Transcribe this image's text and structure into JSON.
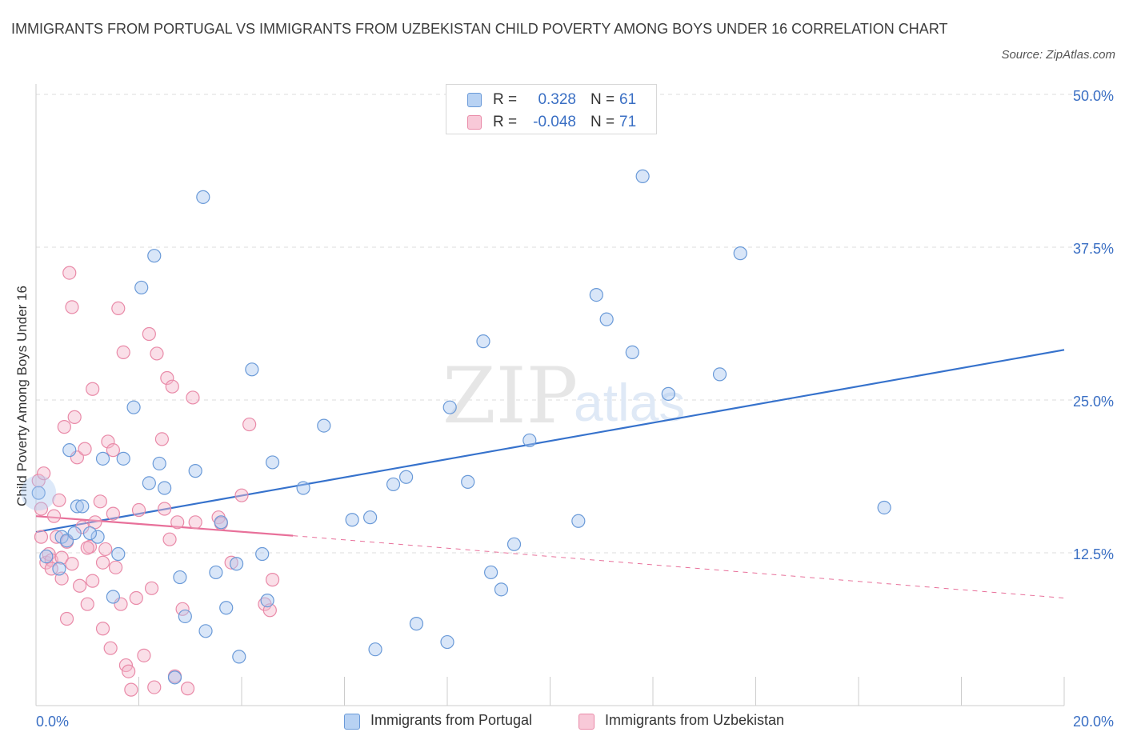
{
  "title": "IMMIGRANTS FROM PORTUGAL VS IMMIGRANTS FROM UZBEKISTAN CHILD POVERTY AMONG BOYS UNDER 16 CORRELATION CHART",
  "source": "Source: ZipAtlas.com",
  "watermark": {
    "zip": "ZIP",
    "atlas": "atlas"
  },
  "legend_top": {
    "rows": [
      {
        "r_label": "R =",
        "r_value": "0.328",
        "n_label": "N =",
        "n_value": "61"
      },
      {
        "r_label": "R =",
        "r_value": "-0.048",
        "n_label": "N =",
        "n_value": "71"
      }
    ]
  },
  "legend_bottom": {
    "items": [
      {
        "label": "Immigrants from Portugal"
      },
      {
        "label": "Immigrants from Uzbekistan"
      }
    ]
  },
  "colors": {
    "portugal_fill": "#aac8f0",
    "portugal_stroke": "#6a9ad8",
    "portugal_line": "#3672cc",
    "uzbekistan_fill": "#f5b8cc",
    "uzbekistan_stroke": "#e98aa8",
    "uzbekistan_line": "#e8709a",
    "axis_text": "#3a6fc4",
    "grid": "#dddddd"
  },
  "chart_data": {
    "type": "scatter",
    "title": "IMMIGRANTS FROM PORTUGAL VS IMMIGRANTS FROM UZBEKISTAN CHILD POVERTY AMONG BOYS UNDER 16 CORRELATION CHART",
    "xlabel": "",
    "ylabel": "Child Poverty Among Boys Under 16",
    "xlim": [
      0,
      20
    ],
    "ylim": [
      0,
      50
    ],
    "x_tick_labels": [
      "0.0%",
      "20.0%"
    ],
    "y_ticks": [
      12.5,
      25.0,
      37.5,
      50.0
    ],
    "y_tick_labels": [
      "12.5%",
      "25.0%",
      "37.5%",
      "50.0%"
    ],
    "grid": "horizontal dashed",
    "legend": "bottom-center",
    "series": [
      {
        "name": "Immigrants from Portugal",
        "r": 0.328,
        "n": 61,
        "trend": {
          "x": [
            0.0,
            20.0
          ],
          "y": [
            14.2,
            29.1
          ],
          "style": "solid"
        },
        "points": [
          [
            0.05,
            17.4
          ],
          [
            0.2,
            12.2
          ],
          [
            0.45,
            11.2
          ],
          [
            0.5,
            13.8
          ],
          [
            0.6,
            13.5
          ],
          [
            0.65,
            20.9
          ],
          [
            0.75,
            14.1
          ],
          [
            0.8,
            16.3
          ],
          [
            0.9,
            16.3
          ],
          [
            1.2,
            13.8
          ],
          [
            1.3,
            20.2
          ],
          [
            1.6,
            12.4
          ],
          [
            1.5,
            8.9
          ],
          [
            1.7,
            20.2
          ],
          [
            1.9,
            24.4
          ],
          [
            2.05,
            34.2
          ],
          [
            2.2,
            18.2
          ],
          [
            2.3,
            36.8
          ],
          [
            2.4,
            19.8
          ],
          [
            2.5,
            17.8
          ],
          [
            2.7,
            2.3
          ],
          [
            2.8,
            10.5
          ],
          [
            2.9,
            7.3
          ],
          [
            3.1,
            19.2
          ],
          [
            3.25,
            41.6
          ],
          [
            3.3,
            6.1
          ],
          [
            3.5,
            10.9
          ],
          [
            3.6,
            15.0
          ],
          [
            3.7,
            8.0
          ],
          [
            3.9,
            11.6
          ],
          [
            3.95,
            4.0
          ],
          [
            4.2,
            27.5
          ],
          [
            4.4,
            12.4
          ],
          [
            4.5,
            8.6
          ],
          [
            4.6,
            19.9
          ],
          [
            5.2,
            17.8
          ],
          [
            5.6,
            22.9
          ],
          [
            6.15,
            15.2
          ],
          [
            6.5,
            15.4
          ],
          [
            6.6,
            4.6
          ],
          [
            6.95,
            18.1
          ],
          [
            7.2,
            18.7
          ],
          [
            7.4,
            6.7
          ],
          [
            8.05,
            24.4
          ],
          [
            8.0,
            5.2
          ],
          [
            8.4,
            18.3
          ],
          [
            8.7,
            29.8
          ],
          [
            8.85,
            10.9
          ],
          [
            9.05,
            9.5
          ],
          [
            9.3,
            13.2
          ],
          [
            9.6,
            21.7
          ],
          [
            10.55,
            15.1
          ],
          [
            10.9,
            33.6
          ],
          [
            11.1,
            31.6
          ],
          [
            11.6,
            28.9
          ],
          [
            11.8,
            43.3
          ],
          [
            12.3,
            25.5
          ],
          [
            13.3,
            27.1
          ],
          [
            13.7,
            37.0
          ],
          [
            16.5,
            16.2
          ],
          [
            1.05,
            14.1
          ]
        ]
      },
      {
        "name": "Immigrants from Uzbekistan",
        "r": -0.048,
        "n": 71,
        "trend": {
          "x": [
            0.0,
            5.0
          ],
          "y": [
            15.5,
            13.9
          ],
          "style": "solid"
        },
        "trend_extension": {
          "x": [
            5.0,
            20.0
          ],
          "y": [
            13.9,
            8.8
          ],
          "style": "dashed"
        },
        "points": [
          [
            0.05,
            18.4
          ],
          [
            0.1,
            16.1
          ],
          [
            0.1,
            13.8
          ],
          [
            0.15,
            19.0
          ],
          [
            0.2,
            11.7
          ],
          [
            0.25,
            12.4
          ],
          [
            0.3,
            11.9
          ],
          [
            0.35,
            15.5
          ],
          [
            0.4,
            13.8
          ],
          [
            0.45,
            16.8
          ],
          [
            0.5,
            12.1
          ],
          [
            0.5,
            10.4
          ],
          [
            0.55,
            22.8
          ],
          [
            0.6,
            13.4
          ],
          [
            0.7,
            32.6
          ],
          [
            0.75,
            23.6
          ],
          [
            0.6,
            7.1
          ],
          [
            0.8,
            20.3
          ],
          [
            0.65,
            35.4
          ],
          [
            0.85,
            9.8
          ],
          [
            0.9,
            14.6
          ],
          [
            0.95,
            21.0
          ],
          [
            1.0,
            8.3
          ],
          [
            1.05,
            13.0
          ],
          [
            1.1,
            10.2
          ],
          [
            1.1,
            25.9
          ],
          [
            1.15,
            15.0
          ],
          [
            1.25,
            16.7
          ],
          [
            1.3,
            11.7
          ],
          [
            1.3,
            6.3
          ],
          [
            1.35,
            12.8
          ],
          [
            1.4,
            21.6
          ],
          [
            1.45,
            4.7
          ],
          [
            1.5,
            20.9
          ],
          [
            1.5,
            15.7
          ],
          [
            1.55,
            11.3
          ],
          [
            1.6,
            32.5
          ],
          [
            1.65,
            8.3
          ],
          [
            1.7,
            28.9
          ],
          [
            1.75,
            3.3
          ],
          [
            1.8,
            2.8
          ],
          [
            1.85,
            1.3
          ],
          [
            1.95,
            8.8
          ],
          [
            2.0,
            16.0
          ],
          [
            2.1,
            4.1
          ],
          [
            2.2,
            30.4
          ],
          [
            2.25,
            9.6
          ],
          [
            2.3,
            1.5
          ],
          [
            2.35,
            28.8
          ],
          [
            2.45,
            21.8
          ],
          [
            2.5,
            16.1
          ],
          [
            2.55,
            26.8
          ],
          [
            2.6,
            13.6
          ],
          [
            2.65,
            26.1
          ],
          [
            2.7,
            2.4
          ],
          [
            2.75,
            15.0
          ],
          [
            2.85,
            7.9
          ],
          [
            2.95,
            1.4
          ],
          [
            3.05,
            25.2
          ],
          [
            3.1,
            15.0
          ],
          [
            3.55,
            15.4
          ],
          [
            3.6,
            14.9
          ],
          [
            3.8,
            11.7
          ],
          [
            4.0,
            17.2
          ],
          [
            4.15,
            23.0
          ],
          [
            4.45,
            8.3
          ],
          [
            4.55,
            7.8
          ],
          [
            4.6,
            10.3
          ],
          [
            0.7,
            11.6
          ],
          [
            1.0,
            12.9
          ],
          [
            0.3,
            11.2
          ]
        ]
      }
    ]
  }
}
